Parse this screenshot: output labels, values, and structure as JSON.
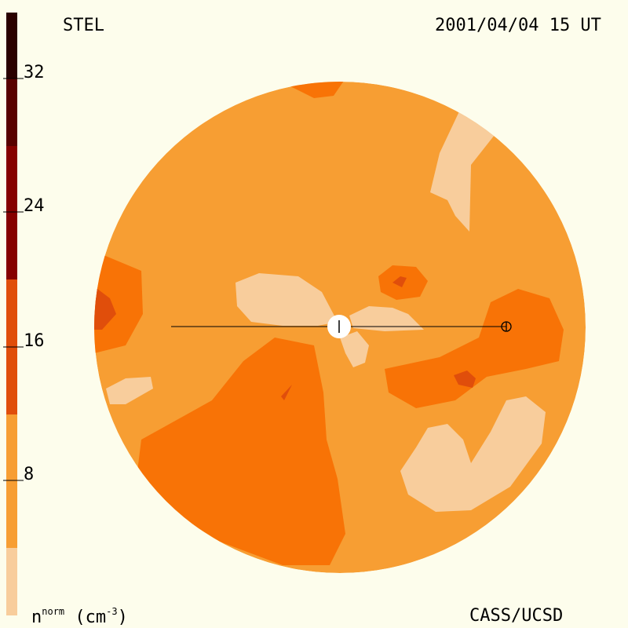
{
  "header": {
    "instrument": "STEL",
    "timestamp": "2001/04/04 15 UT"
  },
  "footer": {
    "quantity_base": "n",
    "quantity_sup": "norm",
    "units": " (cm",
    "units_sup": "-3",
    "units_close": ")",
    "credit": "CASS/UCSD"
  },
  "colorbar": {
    "ticks": [
      "32",
      "24",
      "16",
      "8"
    ],
    "colors": [
      "#f8cd9c",
      "#f79e33",
      "#f87306",
      "#e04e0b",
      "#bd1510",
      "#860000",
      "#580000",
      "#2a0000"
    ]
  },
  "map": {
    "background_color": "#f79e33",
    "sun_marker": "Sun",
    "earth_marker": "Earth"
  }
}
